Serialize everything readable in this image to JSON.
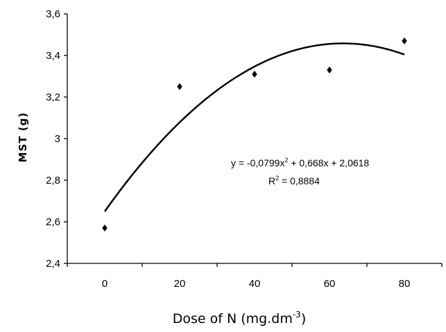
{
  "chart_data": {
    "type": "scatter",
    "title": "",
    "xlabel": "Dose of N (mg.dm",
    "xlabel_sup": "-3",
    "xlabel_close": ")",
    "ylabel": "MST (g)",
    "xlim": [
      -10,
      90
    ],
    "ylim": [
      2.4,
      3.6
    ],
    "x_ticks": [
      0,
      20,
      40,
      60,
      80
    ],
    "x_tick_labels": [
      "0",
      "20",
      "40",
      "60",
      "80"
    ],
    "y_ticks": [
      2.4,
      2.6,
      2.8,
      3.0,
      3.2,
      3.4,
      3.6
    ],
    "y_tick_labels": [
      "2,4",
      "2,6",
      "2,8",
      "3",
      "3,2",
      "3,4",
      "3,6"
    ],
    "grid": false,
    "series": [
      {
        "marker": "diamond",
        "x": [
          0,
          20,
          40,
          60,
          80
        ],
        "y": [
          2.57,
          3.25,
          3.31,
          3.33,
          3.47
        ]
      }
    ],
    "trendline": {
      "type": "polynomial",
      "degree": 2,
      "coefficients_per_level": [
        -0.0799,
        0.668,
        2.0618
      ],
      "x_range": [
        0,
        80
      ],
      "equation_text": {
        "prefix": "y = -0,0799x",
        "sup": "2",
        "suffix": " + 0,668x + 2,0618"
      },
      "r2_text": {
        "prefix": "R",
        "sup": "2",
        "suffix": " = 0,8884"
      }
    },
    "colors": {
      "marker": "#000000",
      "line": "#000000",
      "axis": "#000000"
    }
  }
}
